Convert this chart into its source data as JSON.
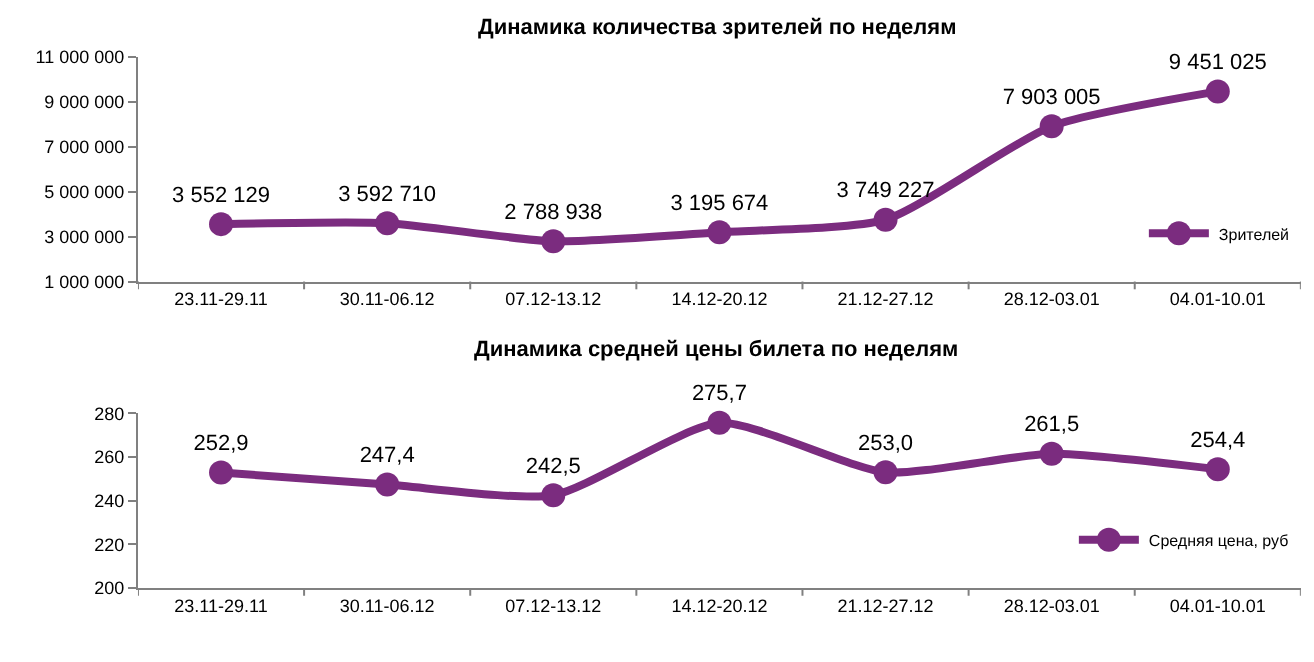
{
  "chart_data": [
    {
      "type": "line",
      "title": "Динамика количества зрителей по неделям",
      "categories": [
        "23.11-29.11",
        "30.11-06.12",
        "07.12-13.12",
        "14.12-20.12",
        "21.12-27.12",
        "28.12-03.01",
        "04.01-10.01"
      ],
      "series": [
        {
          "name": "Зрителей",
          "color": "#7b2c7f",
          "values": [
            3552129,
            3592710,
            2788938,
            3195674,
            3749227,
            7903005,
            9451025
          ],
          "value_labels": [
            "3 552 129",
            "3 592 710",
            "2 788 938",
            "3 195 674",
            "3 749 227",
            "7 903 005",
            "9 451 025"
          ]
        }
      ],
      "ylim": [
        1000000,
        11000000
      ],
      "yticks": [
        {
          "value": 1000000,
          "label": "1 000 000"
        },
        {
          "value": 3000000,
          "label": "3 000 000"
        },
        {
          "value": 5000000,
          "label": "5 000 000"
        },
        {
          "value": 7000000,
          "label": "7 000 000"
        },
        {
          "value": 9000000,
          "label": "9 000 000"
        },
        {
          "value": 11000000,
          "label": "11 000 000"
        }
      ],
      "grid": false,
      "legend": "bottom right",
      "marker": "circle",
      "line_style": "solid"
    },
    {
      "type": "line",
      "title": "Динамика средней цены билета по неделям",
      "categories": [
        "23.11-29.11",
        "30.11-06.12",
        "07.12-13.12",
        "14.12-20.12",
        "21.12-27.12",
        "28.12-03.01",
        "04.01-10.01"
      ],
      "series": [
        {
          "name": "Средняя цена, руб",
          "color": "#7b2c7f",
          "values": [
            252.9,
            247.4,
            242.5,
            275.7,
            253.0,
            261.5,
            254.4
          ],
          "value_labels": [
            "252,9",
            "247,4",
            "242,5",
            "275,7",
            "253,0",
            "261,5",
            "254,4"
          ]
        }
      ],
      "ylim": [
        200,
        280
      ],
      "yticks": [
        200,
        220,
        240,
        260,
        280
      ],
      "grid": false,
      "legend": "bottom right",
      "marker": "circle",
      "line_style": "solid"
    }
  ]
}
